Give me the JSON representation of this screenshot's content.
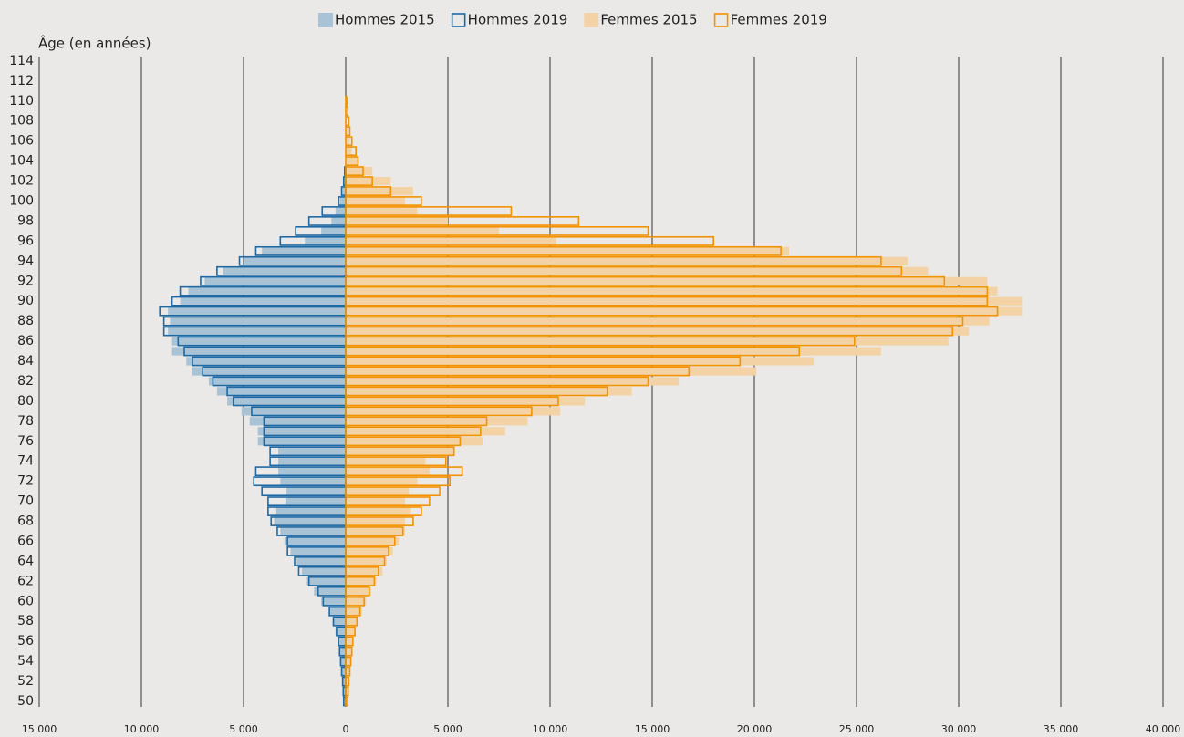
{
  "chart_data": {
    "type": "pyramid",
    "y_axis_label": "Âge (en années)",
    "categories": [
      50,
      null,
      52,
      null,
      54,
      null,
      56,
      null,
      58,
      null,
      60,
      null,
      62,
      null,
      64,
      null,
      66,
      null,
      68,
      null,
      70,
      null,
      72,
      null,
      74,
      null,
      76,
      null,
      78,
      null,
      80,
      null,
      82,
      null,
      84,
      null,
      86,
      null,
      88,
      null,
      90,
      null,
      92,
      null,
      94,
      null,
      96,
      null,
      98,
      null,
      100,
      null,
      102,
      null,
      104,
      null,
      106,
      null,
      108,
      null,
      110,
      null,
      112,
      null,
      114
    ],
    "series": [
      {
        "name": "Hommes 2015",
        "color": "#a9c3d6",
        "outline": false,
        "values": [
          -100,
          -120,
          -150,
          -200,
          -250,
          -300,
          -350,
          -500,
          -650,
          -800,
          -1200,
          -1550,
          -1900,
          -2150,
          -2400,
          -2700,
          -3000,
          -3200,
          -3500,
          -3400,
          -2950,
          -2900,
          -3200,
          -3300,
          -3300,
          -3300,
          -4300,
          -4300,
          -4700,
          -5100,
          -5800,
          -6300,
          -6700,
          -7500,
          -7800,
          -8500,
          -8500,
          -8700,
          -8600,
          -8700,
          -8100,
          -7700,
          -6900,
          -6000,
          -5000,
          -4100,
          -2000,
          -1200,
          -700,
          -500,
          -300,
          -150,
          -100,
          -50,
          0,
          0,
          0,
          0,
          0,
          0,
          0,
          0,
          0,
          0,
          0
        ]
      },
      {
        "name": "Hommes 2019",
        "color": "#1f6aa5",
        "outline": true,
        "values": [
          -100,
          -120,
          -150,
          -200,
          -250,
          -300,
          -350,
          -450,
          -600,
          -800,
          -1100,
          -1350,
          -1800,
          -2300,
          -2500,
          -2850,
          -2850,
          -3350,
          -3650,
          -3800,
          -3800,
          -4100,
          -4500,
          -4400,
          -3700,
          -3700,
          -4000,
          -4000,
          -4000,
          -4600,
          -5500,
          -5800,
          -6500,
          -7000,
          -7500,
          -7900,
          -8200,
          -8900,
          -8900,
          -9100,
          -8500,
          -8100,
          -7100,
          -6300,
          -5200,
          -4400,
          -3200,
          -2450,
          -1800,
          -1150,
          -350,
          -200,
          -100,
          -50,
          0,
          0,
          0,
          0,
          0,
          0,
          0,
          0,
          0,
          0,
          0
        ]
      },
      {
        "name": "Femmes 2015",
        "color": "#f3d3a6",
        "outline": false,
        "values": [
          100,
          120,
          150,
          200,
          250,
          300,
          350,
          450,
          600,
          800,
          1000,
          1250,
          1500,
          1800,
          2000,
          2300,
          2600,
          2900,
          2900,
          3200,
          2900,
          3100,
          3500,
          4100,
          3900,
          5300,
          6700,
          7800,
          8900,
          10500,
          11700,
          14000,
          16300,
          20100,
          22900,
          26200,
          29500,
          30500,
          31500,
          33100,
          33100,
          31900,
          31400,
          28500,
          27500,
          21700,
          10300,
          7500,
          5000,
          3500,
          2900,
          3300,
          2200,
          1300,
          600,
          300,
          200,
          100,
          50,
          50,
          0,
          0,
          0,
          0,
          0
        ]
      },
      {
        "name": "Femmes 2019",
        "color": "#f39200",
        "outline": true,
        "values": [
          100,
          120,
          150,
          200,
          250,
          300,
          350,
          450,
          550,
          700,
          900,
          1150,
          1400,
          1600,
          1900,
          2100,
          2400,
          2800,
          3300,
          3700,
          4100,
          4600,
          5100,
          5700,
          4900,
          5300,
          5600,
          6600,
          6900,
          9100,
          10400,
          12800,
          14800,
          16800,
          19300,
          22200,
          24900,
          29700,
          30200,
          31900,
          31400,
          31400,
          29300,
          27200,
          26200,
          21300,
          18000,
          14800,
          11400,
          8100,
          3700,
          2200,
          1300,
          850,
          600,
          500,
          300,
          200,
          150,
          100,
          50,
          0,
          0,
          0,
          0
        ]
      }
    ],
    "xlim": [
      -15000,
      40000
    ],
    "xticks": [
      {
        "value": -15000,
        "label": "15 000"
      },
      {
        "value": -10000,
        "label": "10 000"
      },
      {
        "value": -5000,
        "label": "5 000"
      },
      0,
      {
        "value": 5000,
        "label": "5 000"
      },
      {
        "value": 10000,
        "label": "10 000"
      },
      {
        "value": 15000,
        "label": "15 000"
      },
      {
        "value": 20000,
        "label": "20 000"
      },
      {
        "value": 25000,
        "label": "25 000"
      },
      {
        "value": 30000,
        "label": "30 000"
      },
      {
        "value": 35000,
        "label": "35 000"
      },
      {
        "value": 40000,
        "label": "40 000"
      }
    ],
    "grid": true,
    "legend": "top"
  }
}
